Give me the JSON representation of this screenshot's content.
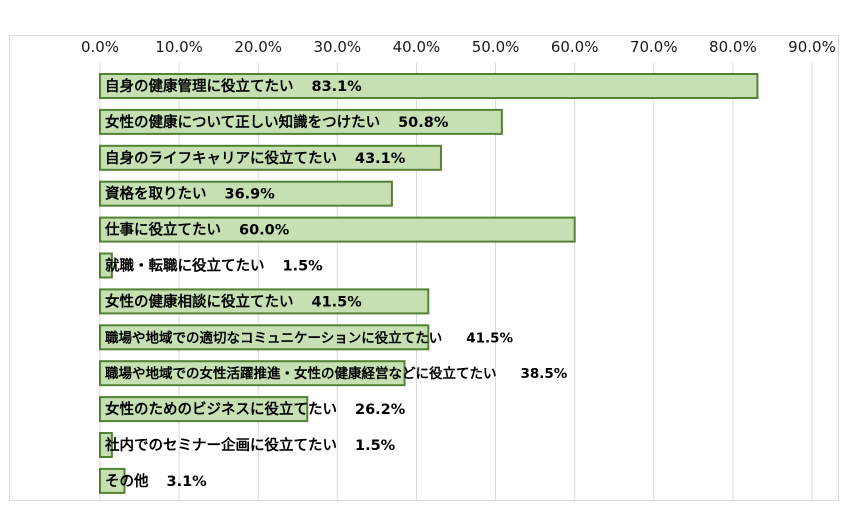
{
  "chart_data": {
    "type": "bar",
    "orientation": "horizontal",
    "xlim": [
      0,
      90
    ],
    "x_ticks": [
      "0.0%",
      "10.0%",
      "20.0%",
      "30.0%",
      "40.0%",
      "50.0%",
      "60.0%",
      "70.0%",
      "80.0%",
      "90.0%"
    ],
    "tick_values": [
      0,
      10,
      20,
      30,
      40,
      50,
      60,
      70,
      80,
      90
    ],
    "gridlines": "vertical",
    "bar_fill": "#c6e0b4",
    "bar_border": "#548235",
    "categories": [
      "自身の健康管理に役立てたい",
      "女性の健康について正しい知識をつけたい",
      "自身のライフキャリアに役立てたい",
      "資格を取りたい",
      "仕事に役立てたい",
      "就職・転職に役立てたい",
      "女性の健康相談に役立てたい",
      "職場や地域での適切なコミュニケーションに役立てたい",
      "職場や地域での女性活躍推進・女性の健康経営などに役立てたい",
      "女性のためのビジネスに役立てたい",
      "社内でのセミナー企画に役立てたい",
      "その他"
    ],
    "values": [
      83.1,
      50.8,
      43.1,
      36.9,
      60.0,
      1.5,
      41.5,
      41.5,
      38.5,
      26.2,
      1.5,
      3.1
    ],
    "value_labels": [
      "83.1%",
      "50.8%",
      "43.1%",
      "36.9%",
      "60.0%",
      "1.5%",
      "41.5%",
      "41.5%",
      "38.5%",
      "26.2%",
      "1.5%",
      "3.1%"
    ]
  }
}
